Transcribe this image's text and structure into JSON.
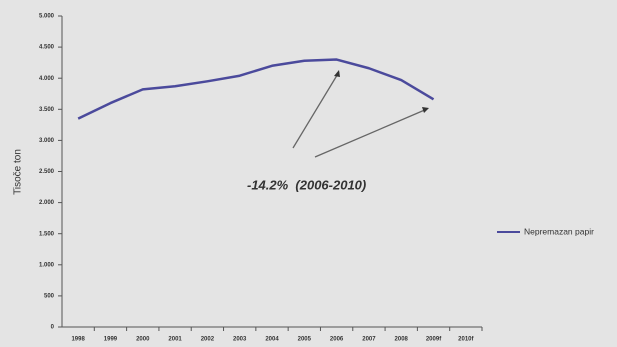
{
  "chart_data": {
    "type": "line",
    "y_label": "Tisoče ton",
    "categories": [
      "1998",
      "1999",
      "2000",
      "2001",
      "2002",
      "2003",
      "2004",
      "2005",
      "2006",
      "2007",
      "2008",
      "2009f",
      "2010f"
    ],
    "series": [
      {
        "name": "Nepremazan papir",
        "color": "#4b4a9c",
        "values": [
          3350,
          3600,
          3820,
          3870,
          3950,
          4040,
          4200,
          4280,
          4300,
          4160,
          3970,
          3660,
          null
        ]
      }
    ],
    "ylim": [
      0,
      5000
    ],
    "yticks": [
      0,
      500,
      {
        "value": 1000,
        "label": "1.000"
      },
      {
        "value": 1500,
        "label": "1.500"
      },
      {
        "value": 2000,
        "label": "2.000"
      },
      {
        "value": 2500,
        "label": "2.500"
      },
      {
        "value": 3000,
        "label": "3.000"
      },
      {
        "value": 3500,
        "label": "3.500"
      },
      {
        "value": 4000,
        "label": "4.000"
      },
      {
        "value": 4500,
        "label": "4.500"
      },
      {
        "value": 5000,
        "label": "5.000"
      }
    ],
    "annotation": "-14.2%  (2006-2010)",
    "legend": "right"
  }
}
